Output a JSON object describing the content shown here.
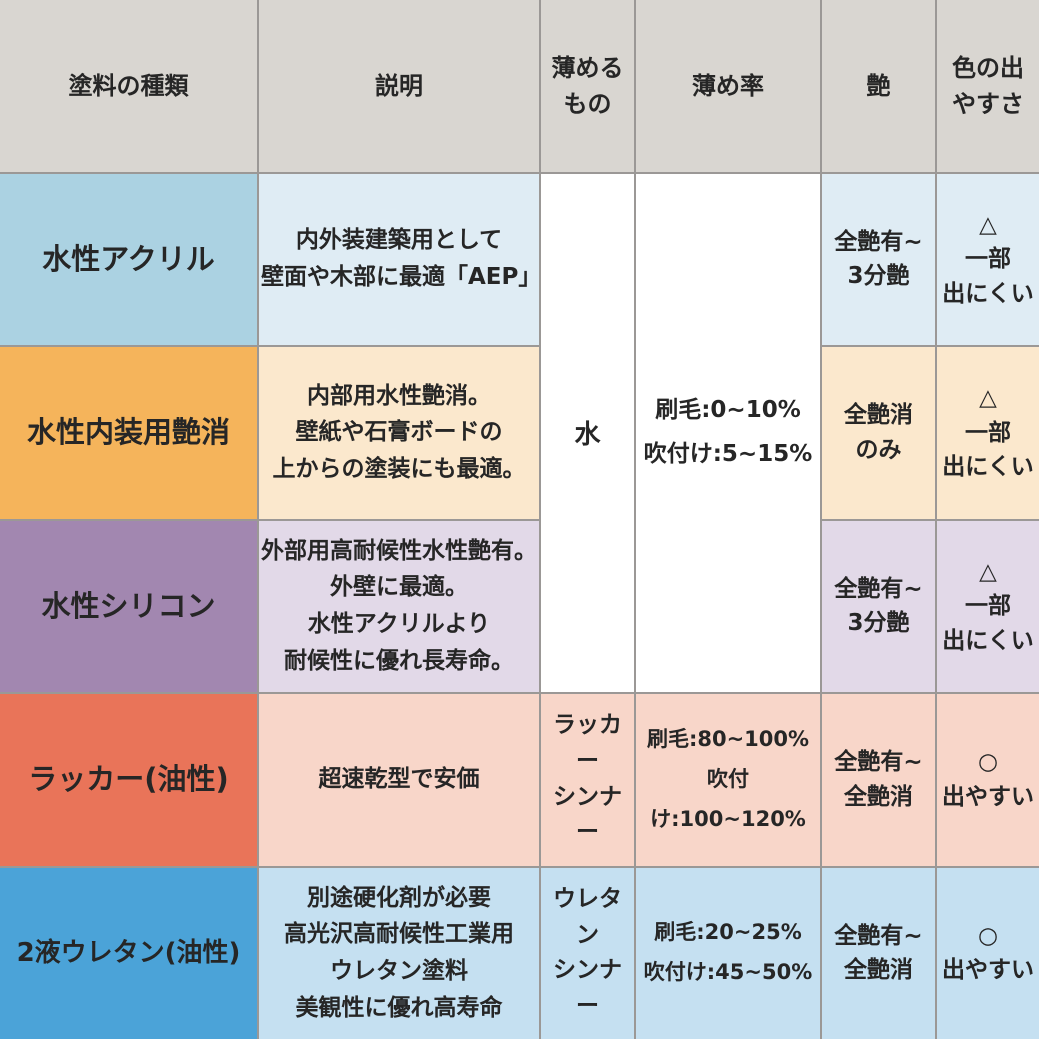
{
  "chart_data": {
    "type": "table",
    "columns": [
      "塗料の種類",
      "説明",
      "薄める\nもの",
      "薄め率",
      "艶",
      "色の出\nやすさ"
    ],
    "merged_cells_note": "薄めるもの and 薄め率 are merged vertically across rows 1-3 (water-based paints)",
    "rows": [
      {
        "name": "水性アクリル",
        "description": "内外装建築用として\n壁面や木部に最適「AEP」",
        "thinner": "水",
        "ratio": "刷毛:0~10%\n吹付け:5~15%",
        "gloss": "全艶有~\n3分艶",
        "color_ease": "△\n一部\n出にくい",
        "accent_color": "#abd2e2",
        "tint_color": "#dfecf4"
      },
      {
        "name": "水性内装用艶消",
        "description": "内部用水性艶消。\n壁紙や石膏ボードの\n上からの塗装にも最適。",
        "thinner": "水",
        "ratio": "刷毛:0~10%\n吹付け:5~15%",
        "gloss": "全艶消\nのみ",
        "color_ease": "△\n一部\n出にくい",
        "accent_color": "#f5b45b",
        "tint_color": "#fbe8cd"
      },
      {
        "name": "水性シリコン",
        "description": "外部用高耐候性水性艶有。\n外壁に最適。\n水性アクリルより\n耐候性に優れ長寿命。",
        "thinner": "水",
        "ratio": "刷毛:0~10%\n吹付け:5~15%",
        "gloss": "全艶有~\n3分艶",
        "color_ease": "△\n一部\n出にくい",
        "accent_color": "#a287b0",
        "tint_color": "#e2d9e8"
      },
      {
        "name": "ラッカー(油性)",
        "description": "超速乾型で安価",
        "thinner": "ラッカー\nシンナー",
        "ratio": "刷毛:80~100%\n吹付け:100~120%",
        "gloss": "全艶有~\n全艶消",
        "color_ease": "○\n出やすい",
        "accent_color": "#e97459",
        "tint_color": "#f8d6c9"
      },
      {
        "name": "2液ウレタン(油性)",
        "description": "別途硬化剤が必要\n高光沢高耐候性工業用\nウレタン塗料\n美観性に優れ高寿命",
        "thinner": "ウレタン\nシンナー",
        "ratio": "刷毛:20~25%\n吹付け:45~50%",
        "gloss": "全艶有~\n全艶消",
        "color_ease": "○\n出やすい",
        "accent_color": "#4ba3d8",
        "tint_color": "#c5e0f1"
      }
    ]
  },
  "colors": {
    "header_bg": "#d9d6d1",
    "grid_line": "#9b9896",
    "text_color": "#262626",
    "merged_cell_bg": "#ffffff"
  }
}
